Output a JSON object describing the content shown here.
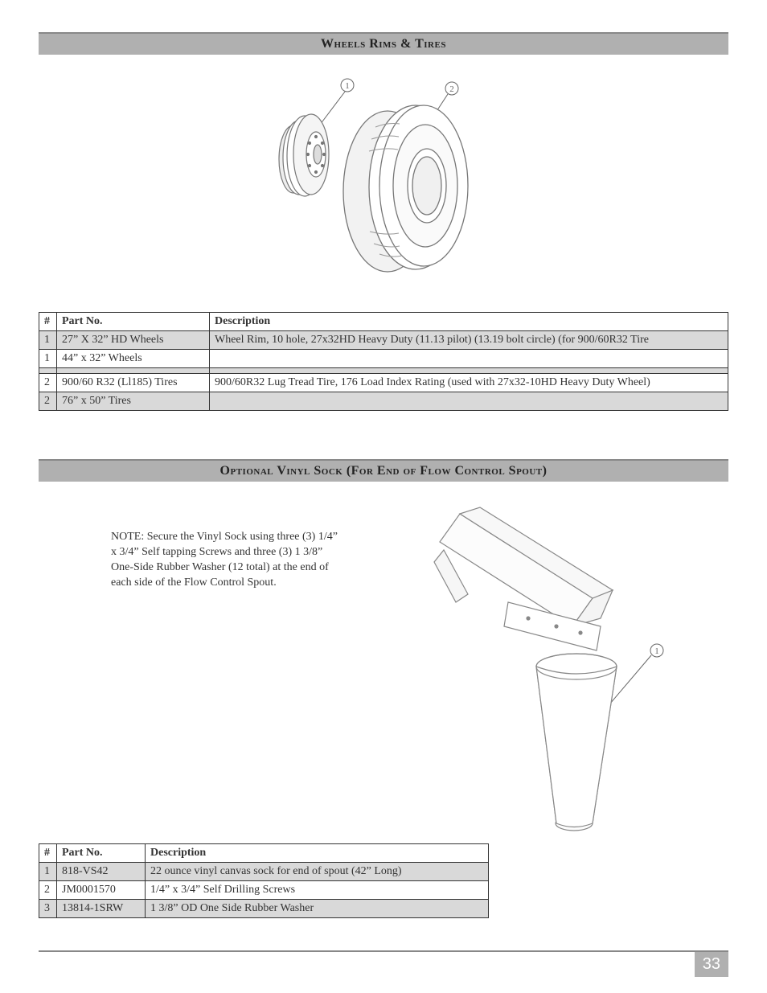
{
  "section1": {
    "title": "Wheels Rims & Tires",
    "callouts": {
      "c1": "1",
      "c2": "2"
    },
    "table": {
      "headers": {
        "num": "#",
        "part": "Part No.",
        "desc": "Description"
      },
      "rows": [
        {
          "num": "1",
          "part": "27” X 32” HD Wheels",
          "desc": "Wheel Rim, 10 hole, 27x32HD Heavy Duty (11.13 pilot) (13.19 bolt circle) (for 900/60R32 Tire",
          "shaded": true
        },
        {
          "num": "1",
          "part": "44” x 32” Wheels",
          "desc": "",
          "shaded": false
        },
        {
          "num": "",
          "part": "",
          "desc": "",
          "shaded": true
        },
        {
          "num": "2",
          "part": "900/60 R32 (Ll185) Tires",
          "desc": "900/60R32 Lug Tread Tire, 176 Load Index Rating (used with 27x32-10HD Heavy Duty Wheel)",
          "shaded": false
        },
        {
          "num": "2",
          "part": "76” x 50” Tires",
          "desc": "",
          "shaded": true
        }
      ]
    }
  },
  "section2": {
    "title": "Optional Vinyl Sock (For End of Flow Control Spout)",
    "note": "NOTE: Secure the Vinyl Sock using three (3) 1/4” x 3/4” Self tapping Screws and three (3) 1 3/8” One-Side Rubber Washer (12 total) at the end of each side of the Flow Control Spout.",
    "callouts": {
      "c1": "1"
    },
    "table": {
      "headers": {
        "num": "#",
        "part": "Part No.",
        "desc": "Description"
      },
      "rows": [
        {
          "num": "1",
          "part": "818-VS42",
          "desc": "22 ounce vinyl canvas sock for end of spout (42” Long)",
          "shaded": true
        },
        {
          "num": "2",
          "part": "JM0001570",
          "desc": "1/4” x 3/4” Self Drilling Screws",
          "shaded": false
        },
        {
          "num": "3",
          "part": "13814-1SRW",
          "desc": "1 3/8” OD One Side Rubber Washer",
          "shaded": true
        }
      ]
    }
  },
  "pageNumber": "33",
  "colors": {
    "headerBg": "#b0b0b0",
    "shadedRow": "#d9d9d9",
    "border": "#333333",
    "stroke": "#888888"
  }
}
